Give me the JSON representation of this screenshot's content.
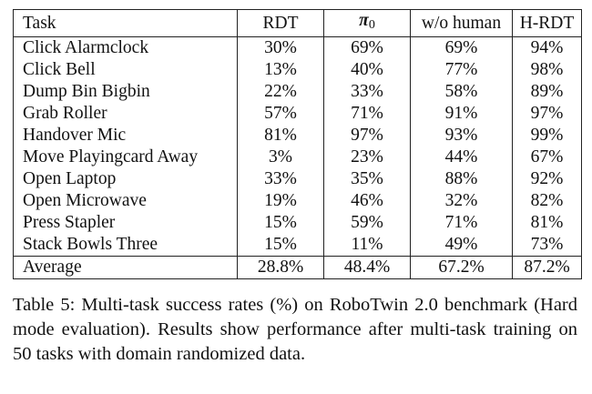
{
  "table": {
    "headers": [
      "Task",
      "RDT",
      "π",
      "0",
      "w/o human",
      "H-RDT"
    ],
    "rows": [
      {
        "task": "Click Alarmclock",
        "rdt": "30%",
        "pi0": "69%",
        "wo_human": "69%",
        "hrdt": "94%"
      },
      {
        "task": "Click Bell",
        "rdt": "13%",
        "pi0": "40%",
        "wo_human": "77%",
        "hrdt": "98%"
      },
      {
        "task": "Dump Bin Bigbin",
        "rdt": "22%",
        "pi0": "33%",
        "wo_human": "58%",
        "hrdt": "89%"
      },
      {
        "task": "Grab Roller",
        "rdt": "57%",
        "pi0": "71%",
        "wo_human": "91%",
        "hrdt": "97%"
      },
      {
        "task": "Handover Mic",
        "rdt": "81%",
        "pi0": "97%",
        "wo_human": "93%",
        "hrdt": "99%"
      },
      {
        "task": "Move Playingcard Away",
        "rdt": "3%",
        "pi0": "23%",
        "wo_human": "44%",
        "hrdt": "67%"
      },
      {
        "task": "Open Laptop",
        "rdt": "33%",
        "pi0": "35%",
        "wo_human": "88%",
        "hrdt": "92%"
      },
      {
        "task": "Open Microwave",
        "rdt": "19%",
        "pi0": "46%",
        "wo_human": "32%",
        "hrdt": "82%"
      },
      {
        "task": "Press Stapler",
        "rdt": "15%",
        "pi0": "59%",
        "wo_human": "71%",
        "hrdt": "81%"
      },
      {
        "task": "Stack Bowls Three",
        "rdt": "15%",
        "pi0": "11%",
        "wo_human": "49%",
        "hrdt": "73%"
      }
    ],
    "average": {
      "task": "Average",
      "rdt": "28.8%",
      "pi0": "48.4%",
      "wo_human": "67.2%",
      "hrdt": "87.2%"
    }
  },
  "caption": "Table 5: Multi-task success rates (%) on RoboTwin 2.0 benchmark (Hard mode evaluation). Results show performance after multi-task training on 50 tasks with domain randomized data."
}
